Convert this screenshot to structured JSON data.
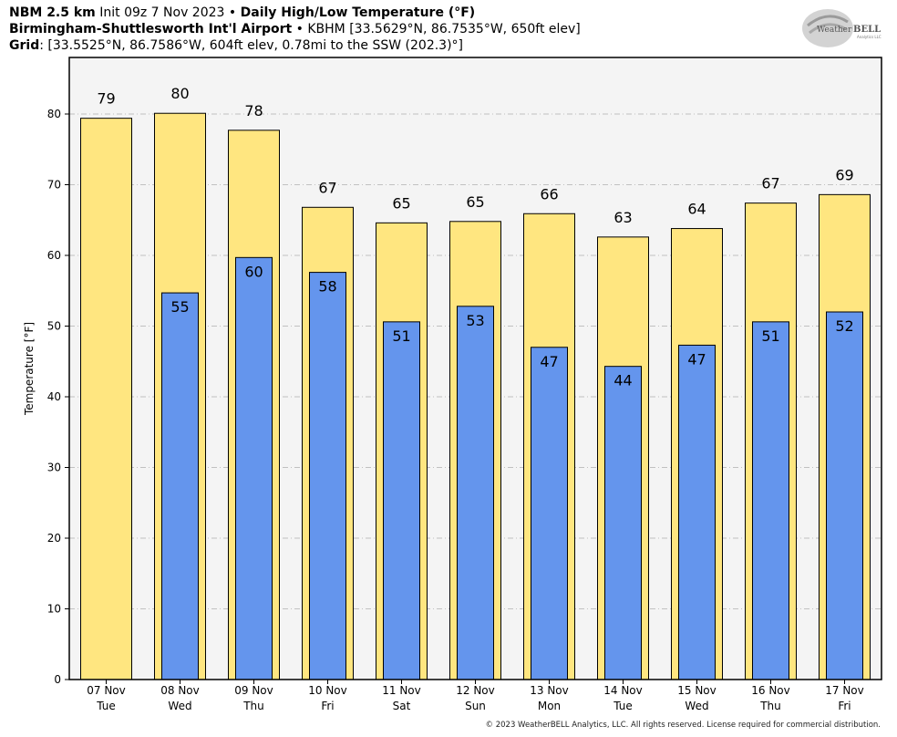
{
  "header": {
    "line1_bold_a": "NBM 2.5 km",
    "line1_normal": "Init 09z 7 Nov 2023",
    "line1_sep": "•",
    "line1_bold_b": "Daily High/Low Temperature (°F)",
    "line2_bold": "Birmingham-Shuttlesworth Int'l Airport",
    "line2_sep": "•",
    "line2_normal": "KBHM [33.5629°N, 86.7535°W, 650ft elev]",
    "line3_bold": "Grid",
    "line3_normal": ": [33.5525°N, 86.7586°W, 604ft elev, 0.78mi to the SSW (202.3)°]"
  },
  "logo": {
    "text_a": "Weather",
    "text_b": "BELL",
    "sub": "Analytics LLC"
  },
  "copyright": "© 2023 WeatherBELL Analytics, LLC. All rights reserved. License required for commercial distribution.",
  "colors": {
    "high": "#ffe680",
    "low": "#6495ed",
    "plot_bg": "#f4f4f4",
    "grid": "#b0b0b0"
  },
  "chart_data": {
    "type": "bar",
    "title": "Daily High/Low Temperature (°F)",
    "ylabel": "Temperature [°F]",
    "ylim": [
      0,
      88
    ],
    "yticks": [
      0,
      10,
      20,
      30,
      40,
      50,
      60,
      70,
      80
    ],
    "grid": true,
    "categories": [
      {
        "date": "07 Nov",
        "day": "Tue"
      },
      {
        "date": "08 Nov",
        "day": "Wed"
      },
      {
        "date": "09 Nov",
        "day": "Thu"
      },
      {
        "date": "10 Nov",
        "day": "Fri"
      },
      {
        "date": "11 Nov",
        "day": "Sat"
      },
      {
        "date": "12 Nov",
        "day": "Sun"
      },
      {
        "date": "13 Nov",
        "day": "Mon"
      },
      {
        "date": "14 Nov",
        "day": "Tue"
      },
      {
        "date": "15 Nov",
        "day": "Wed"
      },
      {
        "date": "16 Nov",
        "day": "Thu"
      },
      {
        "date": "17 Nov",
        "day": "Fri"
      }
    ],
    "series": [
      {
        "key": "high",
        "values": [
          79.4,
          80.1,
          77.7,
          66.8,
          64.6,
          64.8,
          65.9,
          62.6,
          63.8,
          67.4,
          68.6
        ],
        "labels": [
          "79",
          "80",
          "78",
          "67",
          "65",
          "65",
          "66",
          "63",
          "64",
          "67",
          "69"
        ]
      },
      {
        "key": "low",
        "values": [
          null,
          54.7,
          59.7,
          57.6,
          50.6,
          52.8,
          47.0,
          44.3,
          47.3,
          50.6,
          52.0
        ],
        "labels": [
          "",
          "55",
          "60",
          "58",
          "51",
          "53",
          "47",
          "44",
          "47",
          "51",
          "52"
        ]
      }
    ]
  }
}
